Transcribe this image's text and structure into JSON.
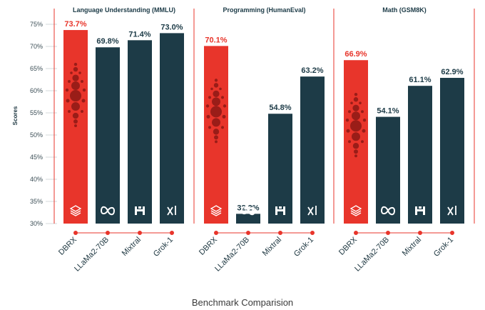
{
  "colors": {
    "dbrx": "#e8352b",
    "other": "#1d3b47",
    "divider": "#e8352b",
    "value_highlight": "#e8352b",
    "value_other": "#1d3b47"
  },
  "chart_data": {
    "type": "bar",
    "caption": "Benchmark Comparision",
    "ylabel": "Scores",
    "ylim": [
      30,
      77
    ],
    "yticks": [
      "30%",
      "35%",
      "40%",
      "45%",
      "50%",
      "55%",
      "60%",
      "65%",
      "70%",
      "75%"
    ],
    "ytick_values": [
      30,
      35,
      40,
      45,
      50,
      55,
      60,
      65,
      70,
      75
    ],
    "categories": [
      "DBRX",
      "LLaMa2-70B",
      "Mixtral",
      "Grok-1"
    ],
    "icons": [
      "layers-icon",
      "meta-icon",
      "mistral-icon",
      "xai-icon"
    ],
    "panels": [
      {
        "title": "Language Understanding (MMLU)",
        "values": [
          73.7,
          69.8,
          71.4,
          73.0
        ],
        "labels": [
          "73.7%",
          "69.8%",
          "71.4%",
          "73.0%"
        ]
      },
      {
        "title": "Programming (HumanEval)",
        "values": [
          70.1,
          32.2,
          54.8,
          63.2
        ],
        "labels": [
          "70.1%",
          "32.2%",
          "54.8%",
          "63.2%"
        ]
      },
      {
        "title": "Math (GSM8K)",
        "values": [
          66.9,
          54.1,
          61.1,
          62.9
        ],
        "labels": [
          "66.9%",
          "54.1%",
          "61.1%",
          "62.9%"
        ]
      }
    ]
  }
}
